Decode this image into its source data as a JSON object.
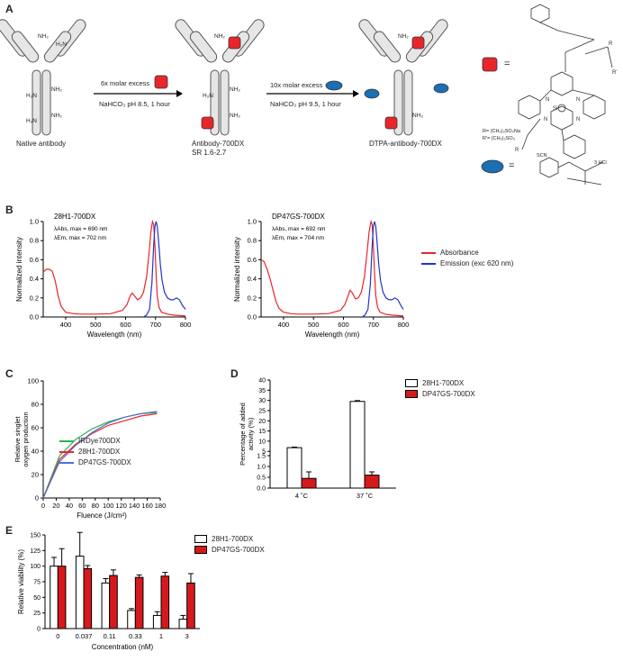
{
  "panels": {
    "a": "A",
    "b": "B",
    "c": "C",
    "d": "D",
    "e": "E"
  },
  "scheme": {
    "step1_reagent": "6x molar excess",
    "step1_buffer": "NaHCO₃ pH 8.5, 1 hour",
    "step2_reagent": "10x molar excess",
    "step2_buffer": "NaHCO₃ pH 9.5, 1 hour",
    "antibody1": "Native antibody",
    "antibody2": "Antibody-700DX",
    "antibody2_sub": "SR 1.6-2.7",
    "antibody3": "DTPA-antibody-700DX",
    "nh2": "NH₂",
    "h2n": "H₂N",
    "equals": "=",
    "r_def": "R= (CH₂)₃SO₃Na",
    "r2_def": "R'= (CH₂)₃SO₃",
    "hcl": "3 HCl",
    "scn": "SCN",
    "colors": {
      "dye": "#e8262a",
      "dtpa": "#1b6fb5"
    }
  },
  "chart_data": [
    {
      "id": "B-left",
      "type": "line",
      "title": "28H1-700DX",
      "annot1": "λAbs, max = 690 nm",
      "annot2": "λEm, max = 702 nm",
      "xlabel": "Wavelength (nm)",
      "ylabel": "Normalized intensity",
      "xlim": [
        325,
        800
      ],
      "ylim": [
        0,
        1.0
      ],
      "xticks": [
        400,
        500,
        600,
        700,
        800
      ],
      "yticks": [
        0.0,
        0.2,
        0.4,
        0.6,
        0.8,
        1.0
      ],
      "ytick_labels": [
        "0.0",
        "0.2",
        "0.4",
        "0.6",
        "0.8",
        "1.0"
      ],
      "series": [
        {
          "name": "Absorbance",
          "color": "#e8262a",
          "x": [
            325,
            335,
            345,
            355,
            365,
            375,
            385,
            400,
            425,
            450,
            475,
            500,
            550,
            590,
            605,
            615,
            622,
            630,
            640,
            650,
            660,
            670,
            678,
            685,
            690,
            694,
            698,
            702,
            706,
            712,
            720,
            740,
            760,
            780,
            800
          ],
          "y": [
            0.47,
            0.5,
            0.5,
            0.48,
            0.38,
            0.22,
            0.11,
            0.05,
            0.035,
            0.03,
            0.03,
            0.03,
            0.035,
            0.07,
            0.13,
            0.22,
            0.25,
            0.22,
            0.18,
            0.2,
            0.26,
            0.42,
            0.65,
            0.9,
            1.0,
            0.97,
            0.75,
            0.45,
            0.22,
            0.1,
            0.05,
            0.03,
            0.02,
            0.015,
            0.01
          ]
        },
        {
          "name": "Emission (exc 620 nm)",
          "color": "#2233cc",
          "x": [
            660,
            670,
            680,
            688,
            694,
            698,
            702,
            706,
            710,
            716,
            722,
            730,
            740,
            750,
            760,
            770,
            780,
            790,
            800
          ],
          "y": [
            0.0,
            0.02,
            0.08,
            0.35,
            0.75,
            0.95,
            1.0,
            0.95,
            0.8,
            0.55,
            0.38,
            0.26,
            0.2,
            0.18,
            0.18,
            0.2,
            0.18,
            0.12,
            0.08
          ]
        }
      ]
    },
    {
      "id": "B-right",
      "type": "line",
      "title": "DP47GS-700DX",
      "annot1": "λAbs, max = 692 nm",
      "annot2": "λEm, max = 704 nm",
      "xlabel": "Wavelength (nm)",
      "ylabel": "Normalized intensity",
      "xlim": [
        325,
        800
      ],
      "ylim": [
        0,
        1.0
      ],
      "xticks": [
        400,
        500,
        600,
        700,
        800
      ],
      "yticks": [
        0.0,
        0.2,
        0.4,
        0.6,
        0.8,
        1.0
      ],
      "ytick_labels": [
        "0.0",
        "0.2",
        "0.4",
        "0.6",
        "0.8",
        "1.0"
      ],
      "legend": [
        "Absorbance",
        "Emission (exc 620 nm)"
      ],
      "series": [
        {
          "name": "Absorbance",
          "color": "#e8262a",
          "x": [
            325,
            335,
            345,
            355,
            365,
            375,
            385,
            400,
            425,
            450,
            475,
            500,
            550,
            590,
            605,
            615,
            622,
            630,
            640,
            650,
            660,
            670,
            678,
            686,
            692,
            696,
            700,
            704,
            708,
            714,
            722,
            740,
            760,
            780,
            800
          ],
          "y": [
            0.6,
            0.58,
            0.5,
            0.4,
            0.28,
            0.16,
            0.09,
            0.05,
            0.035,
            0.03,
            0.03,
            0.03,
            0.035,
            0.07,
            0.13,
            0.22,
            0.28,
            0.25,
            0.19,
            0.2,
            0.26,
            0.42,
            0.65,
            0.9,
            1.0,
            0.97,
            0.75,
            0.45,
            0.22,
            0.1,
            0.05,
            0.03,
            0.02,
            0.015,
            0.01
          ]
        },
        {
          "name": "Emission (exc 620 nm)",
          "color": "#2233cc",
          "x": [
            662,
            672,
            682,
            690,
            696,
            700,
            704,
            708,
            712,
            718,
            724,
            732,
            742,
            752,
            762,
            772,
            782,
            792,
            800
          ],
          "y": [
            0.0,
            0.02,
            0.08,
            0.35,
            0.75,
            0.95,
            1.0,
            0.95,
            0.8,
            0.55,
            0.38,
            0.26,
            0.2,
            0.18,
            0.18,
            0.2,
            0.18,
            0.12,
            0.08
          ]
        }
      ]
    },
    {
      "id": "C",
      "type": "line",
      "xlabel": "Fluence (J/cm²)",
      "ylabel": "Relative singlet oxygen production",
      "xlim": [
        0,
        180
      ],
      "ylim": [
        0,
        100
      ],
      "xticks": [
        0,
        20,
        40,
        60,
        80,
        100,
        120,
        140,
        160,
        180
      ],
      "yticks": [
        0,
        20,
        40,
        60,
        80,
        100
      ],
      "legend": [
        "IRDye700DX",
        "28H1-700DX",
        "DP47GS-700DX"
      ],
      "series": [
        {
          "name": "IRDye700DX",
          "color": "#2db34a",
          "x": [
            0,
            25,
            50,
            75,
            100,
            125,
            150,
            175
          ],
          "y": [
            0,
            36,
            50,
            59,
            65,
            69,
            72,
            73
          ]
        },
        {
          "name": "28H1-700DX",
          "color": "#e8262a",
          "x": [
            0,
            25,
            50,
            75,
            100,
            125,
            150,
            175
          ],
          "y": [
            0,
            33,
            46,
            55,
            62,
            66,
            70,
            72
          ]
        },
        {
          "name": "DP47GS-700DX",
          "color": "#4f6fdc",
          "x": [
            0,
            25,
            50,
            75,
            100,
            125,
            150,
            175
          ],
          "y": [
            0,
            31,
            45,
            56,
            64,
            69,
            72,
            74
          ]
        }
      ]
    },
    {
      "id": "D",
      "type": "bar",
      "ylabel": "Percentage of added activity (%)",
      "categories": [
        "4 ˚C",
        "37 ˚C"
      ],
      "ylim": [
        0,
        40
      ],
      "yticks": [
        0,
        0.5,
        1,
        1.5,
        5,
        10,
        15,
        20,
        25,
        30,
        35,
        40
      ],
      "ytick_labels": [
        "0.0",
        "0.5",
        "1.0",
        "1.5",
        "5",
        "10",
        "15",
        "20",
        "25",
        "30",
        "35",
        "40"
      ],
      "legend": [
        "28H1-700DX",
        "DP47GS-700DX"
      ],
      "series": [
        {
          "name": "28H1-700DX",
          "fill": "#ffffff",
          "values": [
            6.8,
            29.5
          ],
          "errors": [
            0.3,
            0.4
          ]
        },
        {
          "name": "DP47GS-700DX",
          "fill": "#d7191c",
          "values": [
            0.45,
            0.6
          ],
          "errors": [
            0.3,
            0.15
          ]
        }
      ]
    },
    {
      "id": "E",
      "type": "bar",
      "xlabel": "Concentration (nM)",
      "ylabel": "Relative viability (%)",
      "categories": [
        "0",
        "0.037",
        "0.11",
        "0.33",
        "1",
        "3"
      ],
      "ylim": [
        0,
        150
      ],
      "yticks": [
        0,
        25,
        50,
        75,
        100,
        125,
        150
      ],
      "legend": [
        "28H1-700DX",
        "DP47GS-700DX"
      ],
      "series": [
        {
          "name": "28H1-700DX",
          "fill": "#ffffff",
          "values": [
            100,
            116,
            73,
            29,
            21,
            15
          ],
          "errors": [
            14,
            38,
            7,
            3,
            6,
            6
          ]
        },
        {
          "name": "DP47GS-700DX",
          "fill": "#d7191c",
          "values": [
            100,
            96,
            85,
            82,
            84,
            73
          ],
          "errors": [
            28,
            5,
            9,
            4,
            6,
            15
          ]
        }
      ]
    }
  ]
}
